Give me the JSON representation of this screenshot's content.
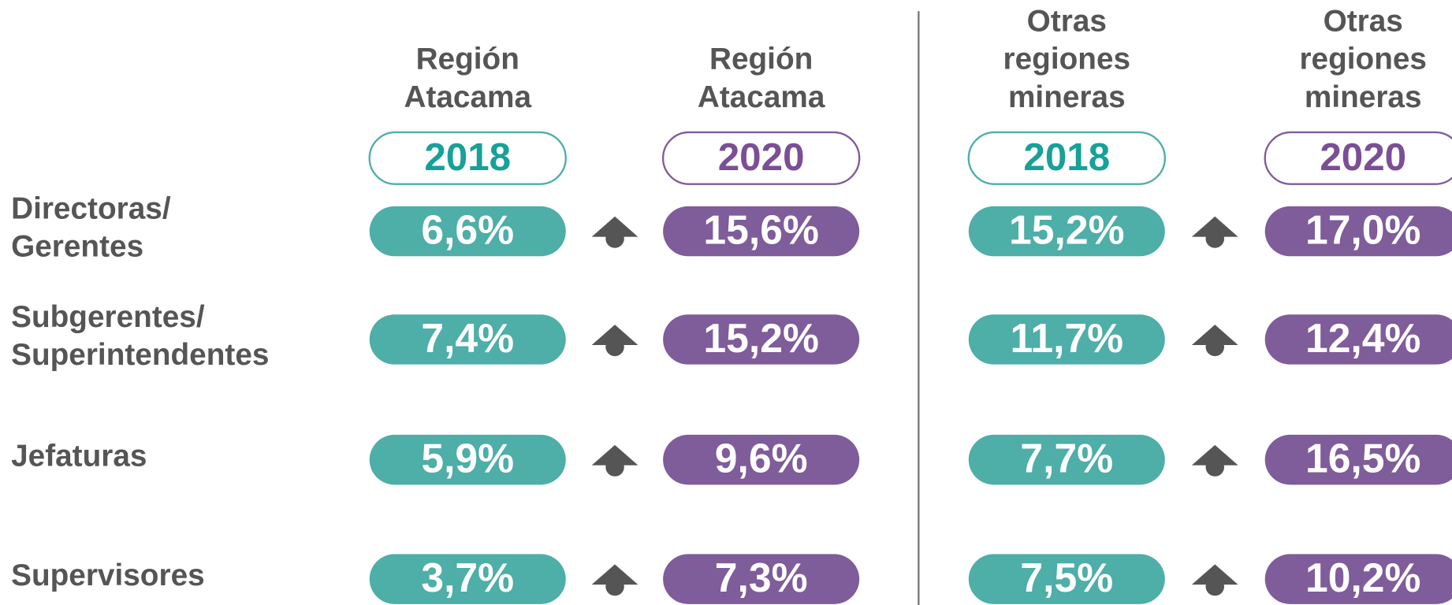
{
  "columns": [
    {
      "region": [
        "Región",
        "Atacama"
      ],
      "year": "2018"
    },
    {
      "region": [
        "Región",
        "Atacama"
      ],
      "year": "2020"
    },
    {
      "region": [
        "Otras",
        "regiones",
        "mineras"
      ],
      "year": "2018"
    },
    {
      "region": [
        "Otras",
        "regiones",
        "mineras"
      ],
      "year": "2020"
    }
  ],
  "rows": [
    {
      "label": [
        "Directoras/",
        "Gerentes"
      ],
      "values": [
        "6,6%",
        "15,6%",
        "15,2%",
        "17,0%"
      ]
    },
    {
      "label": [
        "Subgerentes/",
        "Superintendentes"
      ],
      "values": [
        "7,4%",
        "15,2%",
        "11,7%",
        "12,4%"
      ]
    },
    {
      "label": [
        "Jefaturas"
      ],
      "values": [
        "5,9%",
        "9,6%",
        "7,7%",
        "16,5%"
      ]
    },
    {
      "label": [
        "Supervisores"
      ],
      "values": [
        "3,7%",
        "7,3%",
        "7,5%",
        "10,2%"
      ]
    }
  ]
}
